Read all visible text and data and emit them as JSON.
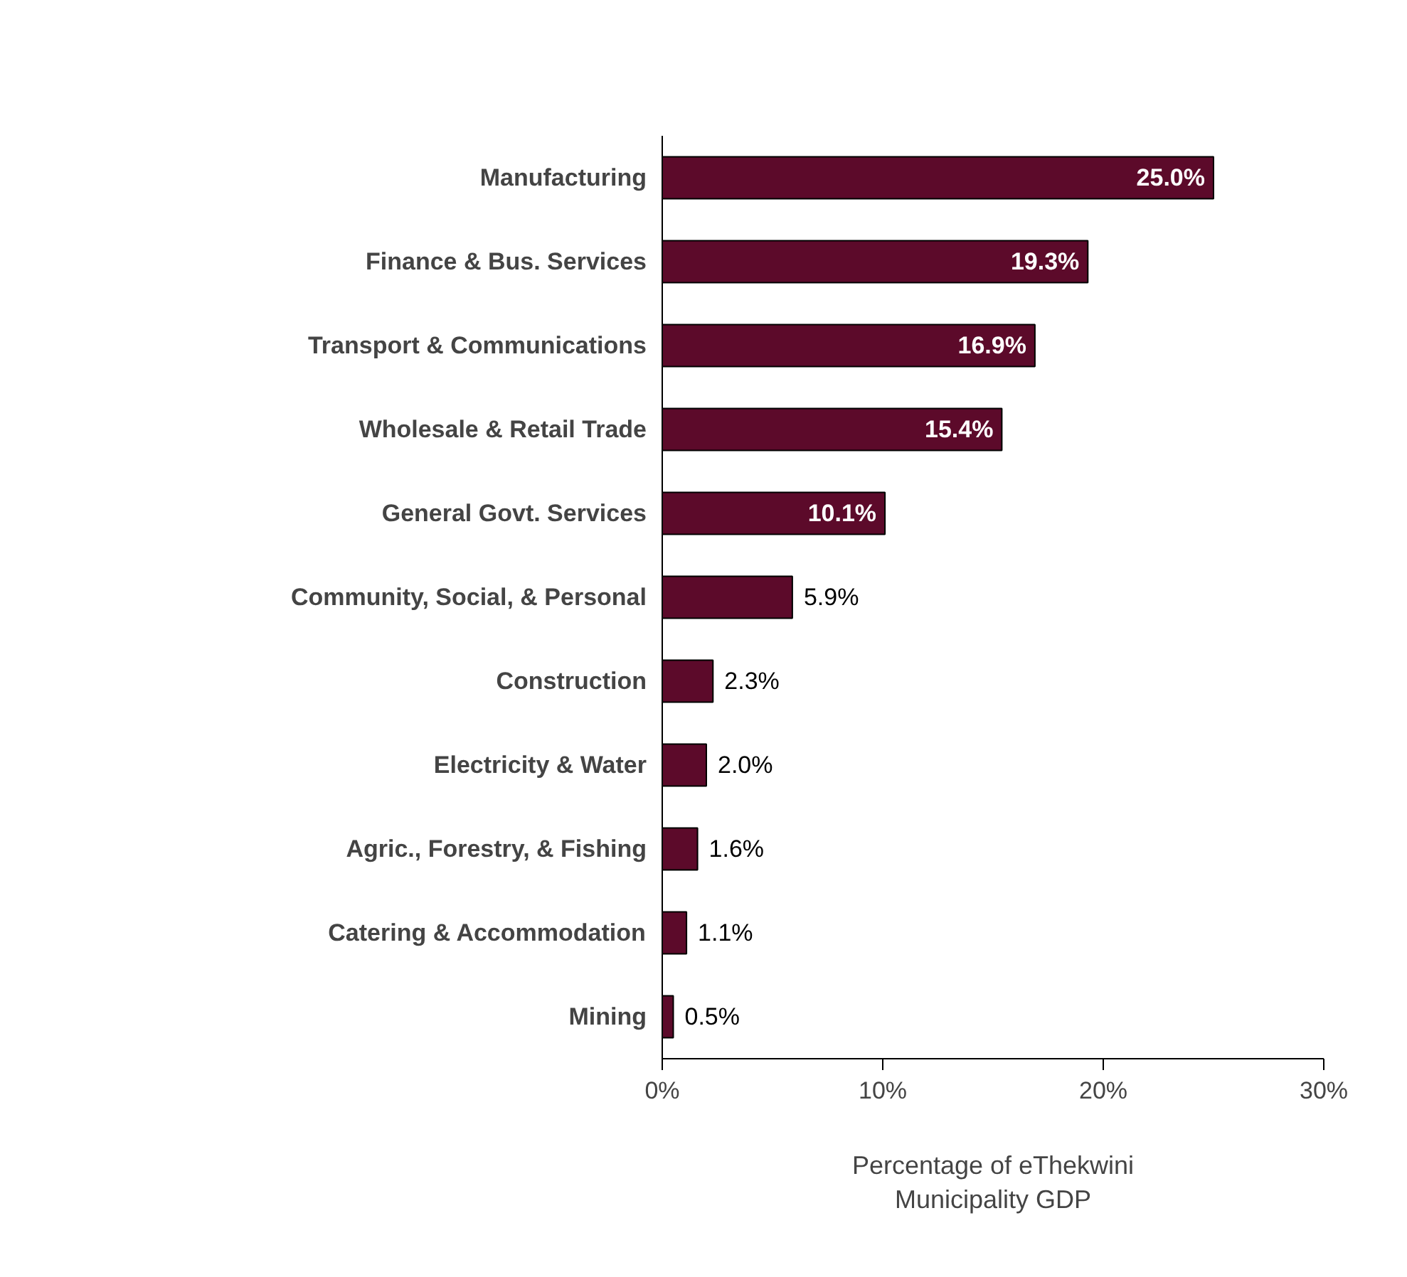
{
  "chart_data": {
    "type": "bar",
    "orientation": "horizontal",
    "categories": [
      "Manufacturing",
      "Finance & Bus. Services",
      "Transport & Communications",
      "Wholesale & Retail Trade",
      "General Govt. Services",
      "Community, Social, & Personal",
      "Construction",
      "Electricity & Water",
      "Agric., Forestry, & Fishing",
      "Catering & Accommodation",
      "Mining"
    ],
    "values": [
      25.0,
      19.3,
      16.9,
      15.4,
      10.1,
      5.9,
      2.3,
      2.0,
      1.6,
      1.1,
      0.5
    ],
    "value_labels": [
      "25.0%",
      "19.3%",
      "16.9%",
      "15.4%",
      "10.1%",
      "5.9%",
      "2.3%",
      "2.0%",
      "1.6%",
      "1.1%",
      "0.5%"
    ],
    "color": "#5c0a2a",
    "xlim": [
      0,
      30
    ],
    "xticks": [
      {
        "value": 0,
        "label": "0%"
      },
      {
        "value": 10,
        "label": "10%"
      },
      {
        "value": 20,
        "label": "20%"
      },
      {
        "value": 30,
        "label": "30%"
      }
    ],
    "xlabel": "Percentage of eThekwini\nMunicipality GDP",
    "grid": false
  }
}
